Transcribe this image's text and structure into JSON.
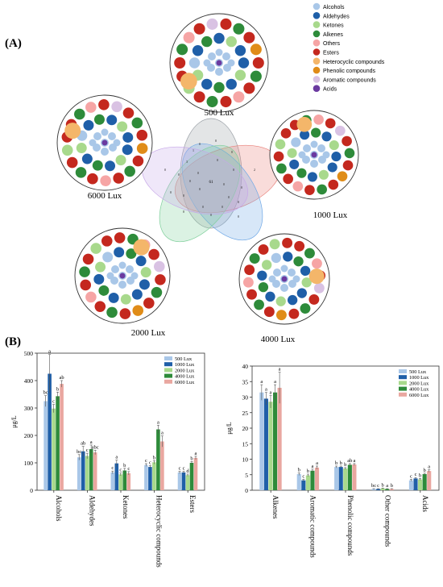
{
  "panels": {
    "a": "(A)",
    "b": "(B)"
  },
  "colors": {
    "alcohols": "#a9c7e8",
    "aldehydes": "#1f5fa8",
    "ketones": "#a8d98c",
    "alkenes": "#2e8b3a",
    "others": "#f6a5a5",
    "esters": "#c4281e",
    "heterocyclic": "#f4b66a",
    "phenolic": "#e08c18",
    "aromatic": "#d9c2e3",
    "acids": "#6b3aa0"
  },
  "legend_a": [
    {
      "label": "Alcohols",
      "color_key": "alcohols"
    },
    {
      "label": "Aldehydes",
      "color_key": "aldehydes"
    },
    {
      "label": "Ketones",
      "color_key": "ketones"
    },
    {
      "label": "Alkenes",
      "color_key": "alkenes"
    },
    {
      "label": "Others",
      "color_key": "others"
    },
    {
      "label": "Esters",
      "color_key": "esters"
    },
    {
      "label": "Heterocyclic compounds",
      "color_key": "heterocyclic"
    },
    {
      "label": "Phenolic compounds",
      "color_key": "phenolic"
    },
    {
      "label": "Aromatic compounds",
      "color_key": "aromatic"
    },
    {
      "label": "Acids",
      "color_key": "acids"
    }
  ],
  "bubble_groups": [
    {
      "label": "500 Lux"
    },
    {
      "label": "6000 Lux"
    },
    {
      "label": "1000 Lux"
    },
    {
      "label": "2000 Lux"
    },
    {
      "label": "4000 Lux"
    }
  ],
  "venn": {
    "sets": [
      "500 Lux",
      "1000 Lux",
      "2000 Lux",
      "4000 Lux",
      "6000 Lux"
    ],
    "center_count": "61",
    "labels": [
      "0",
      "0",
      "0",
      "2",
      "3",
      "0",
      "0",
      "0",
      "0",
      "0",
      "0",
      "1",
      "0",
      "0",
      "0",
      "0",
      "0",
      "0",
      "0",
      "0",
      "0",
      "0",
      "0",
      "0"
    ]
  },
  "chart_data": [
    {
      "type": "bar",
      "ylabel": "μg/L",
      "ylim": [
        0,
        500
      ],
      "yticks": [
        "0",
        "100",
        "200",
        "300",
        "400",
        "500"
      ],
      "categories": [
        "Alcohols",
        "Aldehydes",
        "Ketones",
        "Heterocyclic compounds",
        "Esters"
      ],
      "legend": [
        "500 Lux",
        "1000 Lux",
        "2000 Lux",
        "4000 Lux",
        "6000 Lux"
      ],
      "legend_position": "top-right",
      "series": [
        {
          "name": "500 Lux",
          "color": "#a9c7e8",
          "values": [
            325,
            120,
            65,
            92,
            65
          ],
          "errors": [
            20,
            10,
            5,
            5,
            4
          ]
        },
        {
          "name": "1000 Lux",
          "color": "#1f5fa8",
          "values": [
            425,
            142,
            98,
            85,
            65
          ],
          "errors": [
            70,
            18,
            12,
            5,
            4
          ]
        },
        {
          "name": "2000 Lux",
          "color": "#a8d98c",
          "values": [
            298,
            125,
            58,
            102,
            55
          ],
          "errors": [
            15,
            10,
            5,
            6,
            4
          ]
        },
        {
          "name": "4000 Lux",
          "color": "#2e8b3a",
          "values": [
            343,
            150,
            72,
            222,
            100
          ],
          "errors": [
            15,
            15,
            8,
            15,
            5
          ]
        },
        {
          "name": "6000 Lux",
          "color": "#e9a7a0",
          "values": [
            388,
            138,
            62,
            178,
            118
          ],
          "errors": [
            12,
            8,
            6,
            20,
            6
          ]
        }
      ],
      "letters": [
        [
          "bc",
          "a",
          "c",
          "b",
          "ab"
        ],
        [
          "bc",
          "ab",
          "c",
          "a",
          "abc"
        ],
        [
          "c",
          "a",
          "c",
          "b",
          "c"
        ],
        [
          "c",
          "c",
          "b",
          "a",
          "a"
        ],
        [
          "c",
          "c",
          "d",
          "b",
          "a"
        ]
      ]
    },
    {
      "type": "bar",
      "ylabel": "μg/L",
      "ylim": [
        0,
        40
      ],
      "yticks": [
        "0",
        "5",
        "10",
        "15",
        "20",
        "25",
        "30",
        "35",
        "40"
      ],
      "categories": [
        "Alkenes",
        "Aromatic compounds",
        "Phenolic compounds",
        "Other  compounds",
        "Acids"
      ],
      "legend": [
        "500 Lux",
        "1000 Lux",
        "2000 Lux",
        "4000 Lux",
        "6000 Lux"
      ],
      "legend_position": "top-right",
      "series": [
        {
          "name": "500 Lux",
          "color": "#a9c7e8",
          "values": [
            31.5,
            5.2,
            7.5,
            0.4,
            3.2
          ],
          "errors": [
            2.5,
            0.4,
            0.3,
            0.1,
            0.3
          ]
        },
        {
          "name": "1000 Lux",
          "color": "#1f5fa8",
          "values": [
            29.5,
            3.2,
            7.5,
            0.4,
            3.8
          ],
          "errors": [
            2,
            0.3,
            0.3,
            0.1,
            0.3
          ]
        },
        {
          "name": "2000 Lux",
          "color": "#a8d98c",
          "values": [
            28.5,
            4.8,
            7,
            0.6,
            3.5
          ],
          "errors": [
            2,
            0.4,
            0.3,
            0.1,
            0.3
          ]
        },
        {
          "name": "4000 Lux",
          "color": "#2e8b3a",
          "values": [
            31.5,
            6.3,
            8.2,
            0.4,
            5.2
          ],
          "errors": [
            2.5,
            0.5,
            0.4,
            0.1,
            0.3
          ]
        },
        {
          "name": "6000 Lux",
          "color": "#e9a7a0",
          "values": [
            33,
            7.3,
            8.3,
            0.4,
            6.2
          ],
          "errors": [
            5,
            0.5,
            0.3,
            0.1,
            0.4
          ]
        }
      ],
      "letters": [
        [
          "a",
          "a",
          "a",
          "a",
          "a"
        ],
        [
          "b",
          "c",
          "b",
          "a",
          "a"
        ],
        [
          "b",
          "b",
          "b",
          "ab",
          "a"
        ],
        [
          "bc",
          "c",
          "b",
          "a",
          "b"
        ],
        [
          "c",
          "c",
          "b",
          "b",
          "a"
        ]
      ]
    }
  ]
}
